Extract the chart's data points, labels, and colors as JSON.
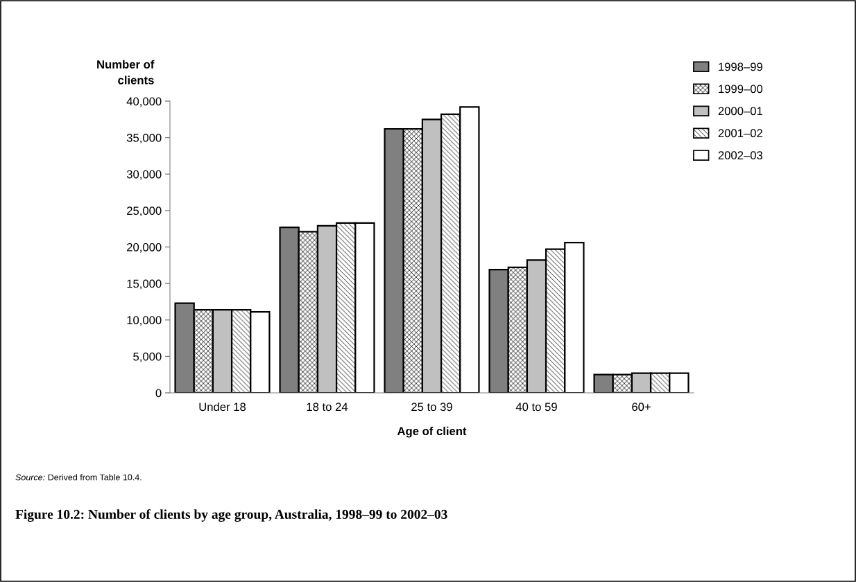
{
  "chart_data": {
    "type": "bar",
    "title": "Figure 10.2: Number of clients by age group, Australia, 1998–99 to 2002–03",
    "xlabel": "Age of client",
    "ylabel": "Number of\nclients",
    "categories": [
      "Under 18",
      "18 to 24",
      "25 to 39",
      "40 to 59",
      "60+"
    ],
    "series": [
      {
        "name": "1998–99",
        "color": "#808080",
        "values": [
          12300,
          22700,
          36200,
          16900,
          2500
        ]
      },
      {
        "name": "1999–00",
        "color": "#000000",
        "values": [
          11400,
          22100,
          36200,
          17200,
          2500
        ]
      },
      {
        "name": "2000–01",
        "color": "#c0c0c0",
        "values": [
          11400,
          22900,
          37500,
          18200,
          2700
        ]
      },
      {
        "name": "2001–02",
        "color": "#000000",
        "values": [
          11400,
          23300,
          38200,
          19700,
          2700
        ]
      },
      {
        "name": "2002–03",
        "color": "#ffffff",
        "values": [
          11100,
          23300,
          39200,
          20600,
          2700
        ]
      }
    ],
    "ylim": [
      0,
      40000
    ],
    "yticks": [
      {
        "value": 0,
        "label": "0"
      },
      {
        "value": 5000,
        "label": "5,000"
      },
      {
        "value": 10000,
        "label": "10,000"
      },
      {
        "value": 15000,
        "label": "15,000"
      },
      {
        "value": 20000,
        "label": "20,000"
      },
      {
        "value": 25000,
        "label": "25,000"
      },
      {
        "value": 30000,
        "label": "30,000"
      },
      {
        "value": 35000,
        "label": "35,000"
      },
      {
        "value": 40000,
        "label": "40,000"
      }
    ],
    "grid": false,
    "legend": "top right",
    "annotations": [
      "Source: Derived from Table 10.4."
    ]
  }
}
